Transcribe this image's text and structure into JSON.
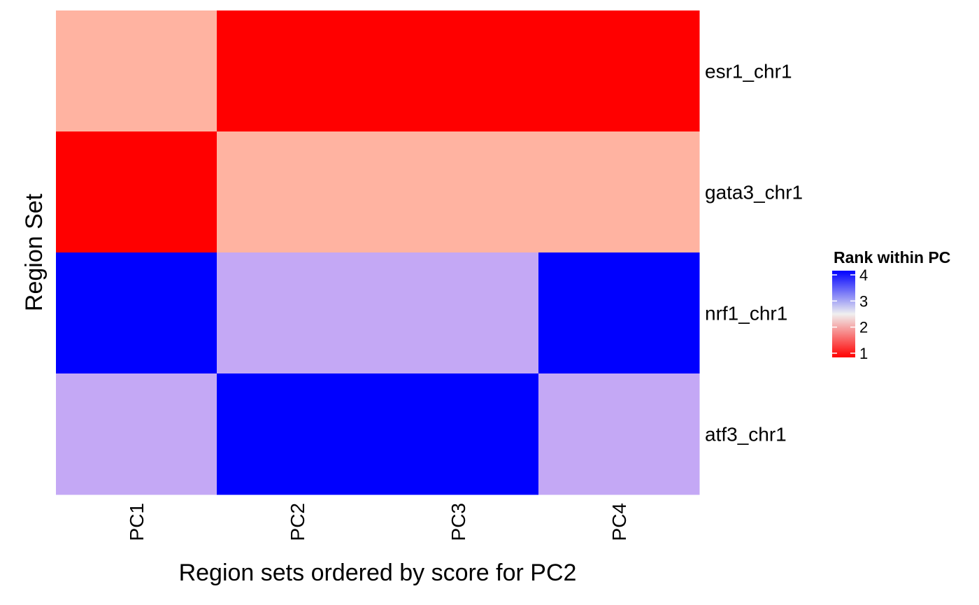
{
  "chart_data": {
    "type": "heatmap",
    "title": "",
    "xlabel": "Region sets ordered by score for PC2",
    "ylabel": "Region Set",
    "x": [
      "PC1",
      "PC2",
      "PC3",
      "PC4"
    ],
    "y": [
      "esr1_chr1",
      "gata3_chr1",
      "nrf1_chr1",
      "atf3_chr1"
    ],
    "values": [
      [
        2,
        1,
        1,
        1
      ],
      [
        1,
        2,
        2,
        2
      ],
      [
        4,
        3,
        3,
        4
      ],
      [
        3,
        4,
        4,
        3
      ]
    ],
    "legend": {
      "title": "Rank within PC",
      "ticks": [
        4,
        3,
        2,
        1
      ],
      "range": [
        1,
        4
      ],
      "colors": {
        "low": "#ff0000",
        "mid": "#f0f0f0",
        "high": "#0000ff"
      },
      "placement": "right"
    },
    "grid": false
  }
}
